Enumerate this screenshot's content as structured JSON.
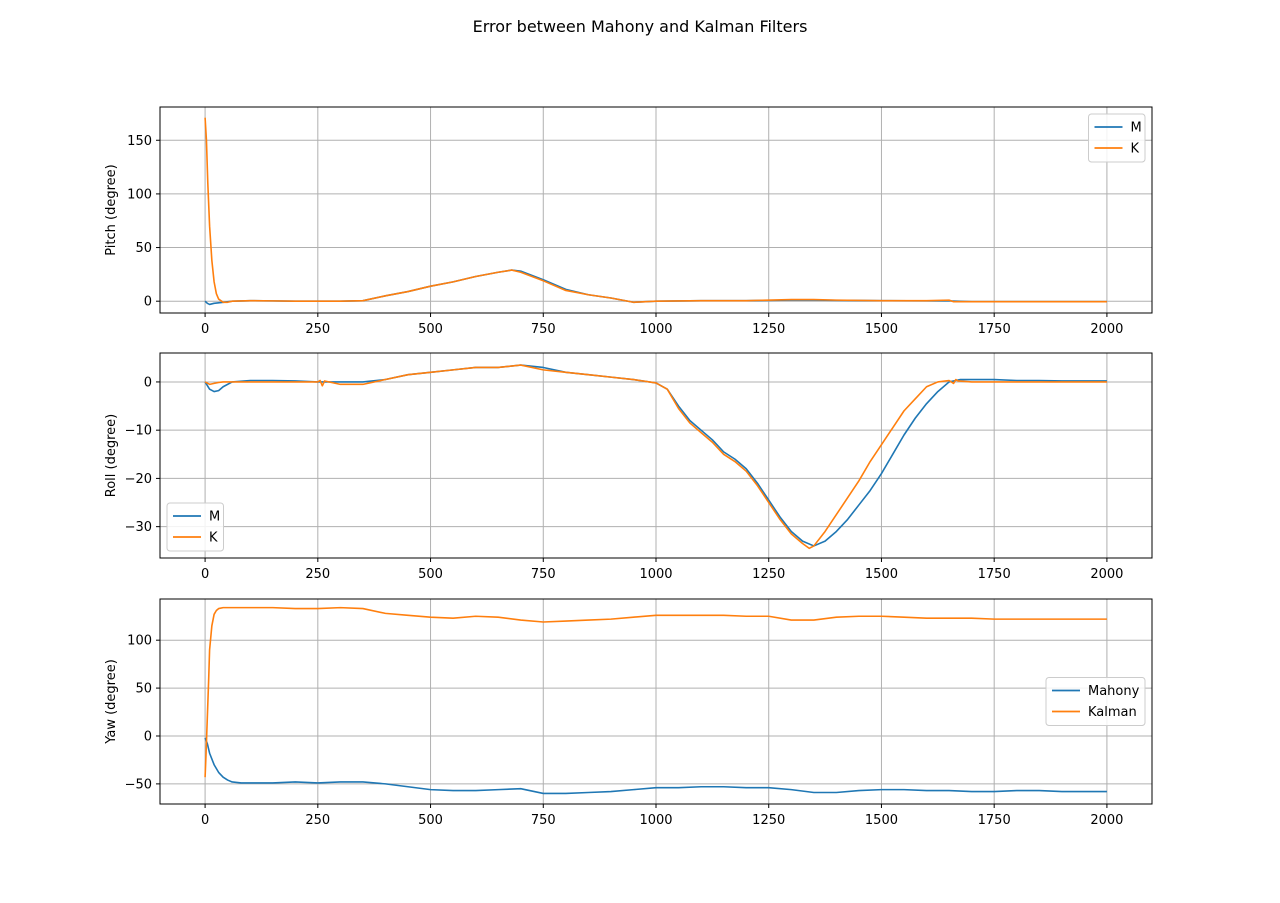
{
  "figure_title": "Error between Mahony and Kalman Filters",
  "colors": {
    "series_0": "#1f77b4",
    "series_1": "#ff7f0e"
  },
  "chart_data": [
    {
      "type": "line",
      "ylabel": "Pitch (degree)",
      "xlim": [
        -100,
        2100
      ],
      "ylim": [
        -11,
        181
      ],
      "xticks": [
        0,
        250,
        500,
        750,
        1000,
        1250,
        1500,
        1750,
        2000
      ],
      "yticks": [
        0,
        50,
        100,
        150
      ],
      "grid": true,
      "legend": "top-right",
      "series": [
        {
          "name": "M",
          "x": [
            0,
            5,
            10,
            20,
            40,
            60,
            100,
            150,
            200,
            250,
            300,
            350,
            400,
            450,
            500,
            550,
            600,
            650,
            680,
            700,
            750,
            800,
            850,
            900,
            950,
            1000,
            1100,
            1200,
            1300,
            1350,
            1400,
            1500,
            1600,
            1650,
            1700,
            1800,
            1900,
            2000
          ],
          "y": [
            0,
            -2,
            -3,
            -2,
            -1,
            0,
            0.5,
            0.3,
            0,
            0,
            0,
            0.5,
            5,
            9,
            14,
            18,
            23,
            27,
            29,
            28,
            20,
            11,
            6,
            3,
            -1,
            0,
            0.5,
            0.5,
            1,
            1,
            0.8,
            0.5,
            0.3,
            0.3,
            -0.5,
            -0.5,
            -0.5,
            -0.5
          ]
        },
        {
          "name": "K",
          "x": [
            0,
            3,
            6,
            10,
            15,
            20,
            25,
            30,
            40,
            50,
            60,
            100,
            150,
            200,
            250,
            300,
            350,
            400,
            450,
            500,
            550,
            600,
            650,
            680,
            700,
            750,
            800,
            850,
            900,
            950,
            1000,
            1100,
            1200,
            1300,
            1350,
            1400,
            1500,
            1600,
            1650,
            1660,
            1700,
            1800,
            1900,
            2000
          ],
          "y": [
            171,
            150,
            110,
            70,
            38,
            18,
            7,
            2,
            -1,
            -1,
            0,
            0.5,
            0.3,
            0,
            0,
            0,
            0.5,
            5,
            9,
            14,
            18,
            23,
            27,
            29,
            27,
            19,
            10,
            6,
            3,
            -1,
            0,
            0.5,
            0.5,
            1.5,
            1.5,
            1,
            0.5,
            0.5,
            1,
            -0.5,
            -0.5,
            -0.5,
            -0.5,
            -0.5
          ]
        }
      ]
    },
    {
      "type": "line",
      "ylabel": "Roll (degree)",
      "xlim": [
        -100,
        2100
      ],
      "ylim": [
        -36.5,
        6
      ],
      "xticks": [
        0,
        250,
        500,
        750,
        1000,
        1250,
        1500,
        1750,
        2000
      ],
      "yticks": [
        0,
        -10,
        -20,
        -30
      ],
      "grid": true,
      "legend": "bottom-left",
      "series": [
        {
          "name": "M",
          "x": [
            0,
            10,
            20,
            30,
            40,
            60,
            100,
            150,
            200,
            250,
            300,
            350,
            400,
            450,
            500,
            550,
            600,
            650,
            700,
            750,
            800,
            850,
            900,
            950,
            1000,
            1025,
            1050,
            1075,
            1100,
            1125,
            1150,
            1175,
            1200,
            1225,
            1250,
            1275,
            1300,
            1325,
            1350,
            1375,
            1400,
            1425,
            1450,
            1475,
            1500,
            1525,
            1550,
            1575,
            1600,
            1625,
            1650,
            1675,
            1700,
            1750,
            1800,
            1850,
            1900,
            1950,
            2000
          ],
          "y": [
            0,
            -1.5,
            -2,
            -1.8,
            -1,
            0,
            0.3,
            0.3,
            0.2,
            0,
            0,
            0,
            0.5,
            1.5,
            2,
            2.5,
            3,
            3,
            3.5,
            3,
            2,
            1.5,
            1,
            0.5,
            -0.2,
            -1.5,
            -5,
            -8,
            -10,
            -12,
            -14.5,
            -16,
            -18,
            -21,
            -24.5,
            -28,
            -31,
            -33,
            -34,
            -33,
            -31,
            -28.5,
            -25.5,
            -22.5,
            -19,
            -15,
            -11,
            -7.5,
            -4.5,
            -2,
            0,
            0.5,
            0.5,
            0.5,
            0.3,
            0.3,
            0.2,
            0.2,
            0.2
          ]
        },
        {
          "name": "K",
          "x": [
            0,
            10,
            20,
            30,
            40,
            60,
            100,
            150,
            200,
            250,
            255,
            260,
            265,
            300,
            350,
            400,
            450,
            500,
            550,
            600,
            650,
            700,
            750,
            800,
            850,
            900,
            950,
            1000,
            1025,
            1050,
            1075,
            1100,
            1125,
            1150,
            1175,
            1200,
            1225,
            1250,
            1275,
            1300,
            1325,
            1340,
            1350,
            1375,
            1400,
            1425,
            1450,
            1475,
            1500,
            1525,
            1550,
            1575,
            1600,
            1625,
            1650,
            1660,
            1665,
            1670,
            1700,
            1750,
            1800,
            1850,
            1900,
            1950,
            2000
          ],
          "y": [
            0,
            -0.5,
            -0.3,
            -0.1,
            0,
            0,
            0,
            0,
            0,
            0,
            0.3,
            -0.8,
            0.2,
            -0.5,
            -0.5,
            0.5,
            1.5,
            2,
            2.5,
            3,
            3,
            3.5,
            2.5,
            2,
            1.5,
            1,
            0.5,
            -0.2,
            -1.5,
            -5.5,
            -8.5,
            -10.5,
            -12.5,
            -15,
            -16.5,
            -18.5,
            -21.5,
            -25,
            -28.5,
            -31.5,
            -33.5,
            -34.5,
            -34,
            -31,
            -27.5,
            -24,
            -20.5,
            -16.5,
            -13,
            -9.5,
            -6,
            -3.5,
            -1,
            0,
            0.3,
            -0.3,
            0.5,
            0.2,
            0,
            0,
            0,
            0,
            0,
            0,
            0
          ]
        }
      ]
    },
    {
      "type": "line",
      "ylabel": "Yaw (degree)",
      "xlim": [
        -100,
        2100
      ],
      "ylim": [
        -71,
        143
      ],
      "xticks": [
        0,
        250,
        500,
        750,
        1000,
        1250,
        1500,
        1750,
        2000
      ],
      "yticks": [
        100,
        50,
        0,
        -50
      ],
      "grid": true,
      "legend": "center-right",
      "series": [
        {
          "name": "Mahony",
          "x": [
            0,
            5,
            10,
            20,
            30,
            40,
            50,
            60,
            80,
            100,
            150,
            200,
            250,
            300,
            350,
            400,
            450,
            500,
            550,
            600,
            650,
            700,
            750,
            800,
            850,
            900,
            950,
            1000,
            1050,
            1100,
            1150,
            1200,
            1250,
            1300,
            1350,
            1400,
            1450,
            1500,
            1550,
            1600,
            1650,
            1700,
            1750,
            1800,
            1850,
            1900,
            1950,
            2000
          ],
          "y": [
            -2,
            -8,
            -18,
            -30,
            -38,
            -43,
            -46,
            -48,
            -49,
            -49,
            -49,
            -48,
            -49,
            -48,
            -48,
            -50,
            -53,
            -56,
            -57,
            -57,
            -56,
            -55,
            -60,
            -60,
            -59,
            -58,
            -56,
            -54,
            -54,
            -53,
            -53,
            -54,
            -54,
            -56,
            -59,
            -59,
            -57,
            -56,
            -56,
            -57,
            -57,
            -58,
            -58,
            -57,
            -57,
            -58,
            -58,
            -58
          ]
        },
        {
          "name": "Kalman",
          "x": [
            0,
            2,
            5,
            8,
            10,
            15,
            20,
            25,
            30,
            40,
            60,
            100,
            150,
            200,
            250,
            300,
            350,
            400,
            450,
            500,
            550,
            600,
            650,
            700,
            750,
            800,
            850,
            900,
            950,
            1000,
            1050,
            1100,
            1150,
            1200,
            1250,
            1300,
            1350,
            1400,
            1450,
            1500,
            1550,
            1600,
            1650,
            1700,
            1750,
            1800,
            1850,
            1900,
            1950,
            2000
          ],
          "y": [
            -43,
            -20,
            20,
            60,
            90,
            115,
            127,
            131,
            133,
            134,
            134,
            134,
            134,
            133,
            133,
            134,
            133,
            128,
            126,
            124,
            123,
            125,
            124,
            121,
            119,
            120,
            121,
            122,
            124,
            126,
            126,
            126,
            126,
            125,
            125,
            121,
            121,
            124,
            125,
            125,
            124,
            123,
            123,
            123,
            122,
            122,
            122,
            122,
            122,
            122
          ]
        }
      ]
    }
  ]
}
